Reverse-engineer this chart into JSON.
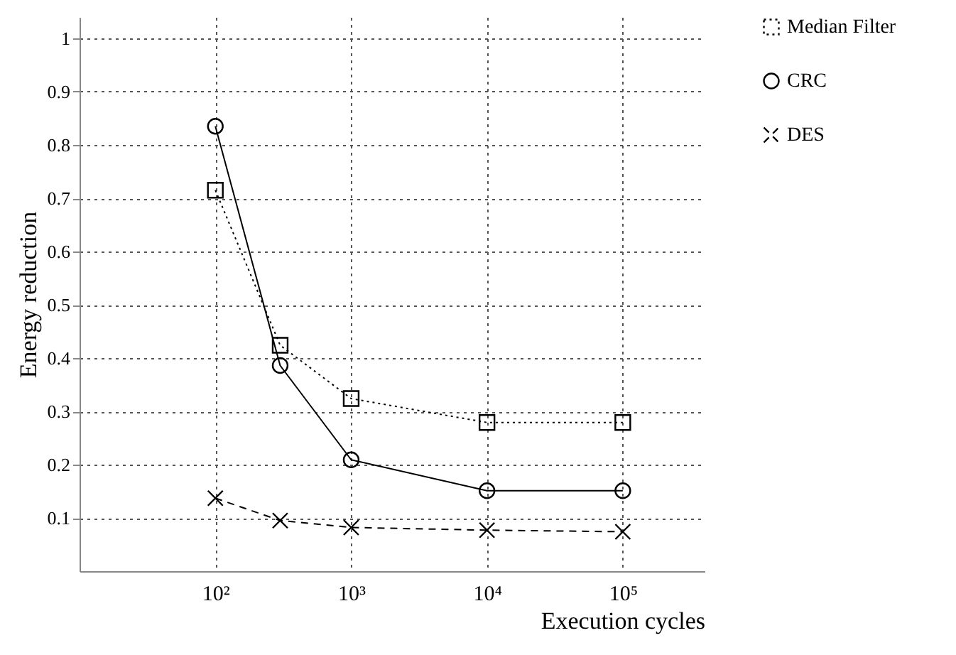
{
  "chart_data": {
    "type": "line",
    "xlabel": "Execution cycles",
    "ylabel": "Energy reduction",
    "x": [
      100,
      300,
      1000,
      10000,
      100000
    ],
    "series": [
      {
        "name": "Median Filter",
        "color": "#000000",
        "marker": "square",
        "line_style": "dotted",
        "values": [
          0.715,
          0.424,
          0.324,
          0.279,
          0.279
        ]
      },
      {
        "name": "CRC",
        "color": "#000000",
        "marker": "circle",
        "line_style": "solid",
        "values": [
          0.835,
          0.386,
          0.209,
          0.151,
          0.151
        ]
      },
      {
        "name": "DES",
        "color": "#000000",
        "marker": "cross",
        "line_style": "dashed",
        "values": [
          0.137,
          0.095,
          0.082,
          0.077,
          0.074
        ]
      }
    ],
    "log": "x",
    "xlim": [
      10,
      400000
    ],
    "xticks": [
      {
        "value": 100,
        "label": "10²"
      },
      {
        "value": 1000,
        "label": "10³"
      },
      {
        "value": 10000,
        "label": "10⁴"
      },
      {
        "value": 100000,
        "label": "10⁵"
      }
    ],
    "ylim": [
      0,
      1.04
    ],
    "yticks": [
      0.1,
      0.2,
      0.3,
      0.4,
      0.5,
      0.6,
      0.7,
      0.8,
      0.9,
      1
    ],
    "grid": true,
    "legend": "right"
  }
}
